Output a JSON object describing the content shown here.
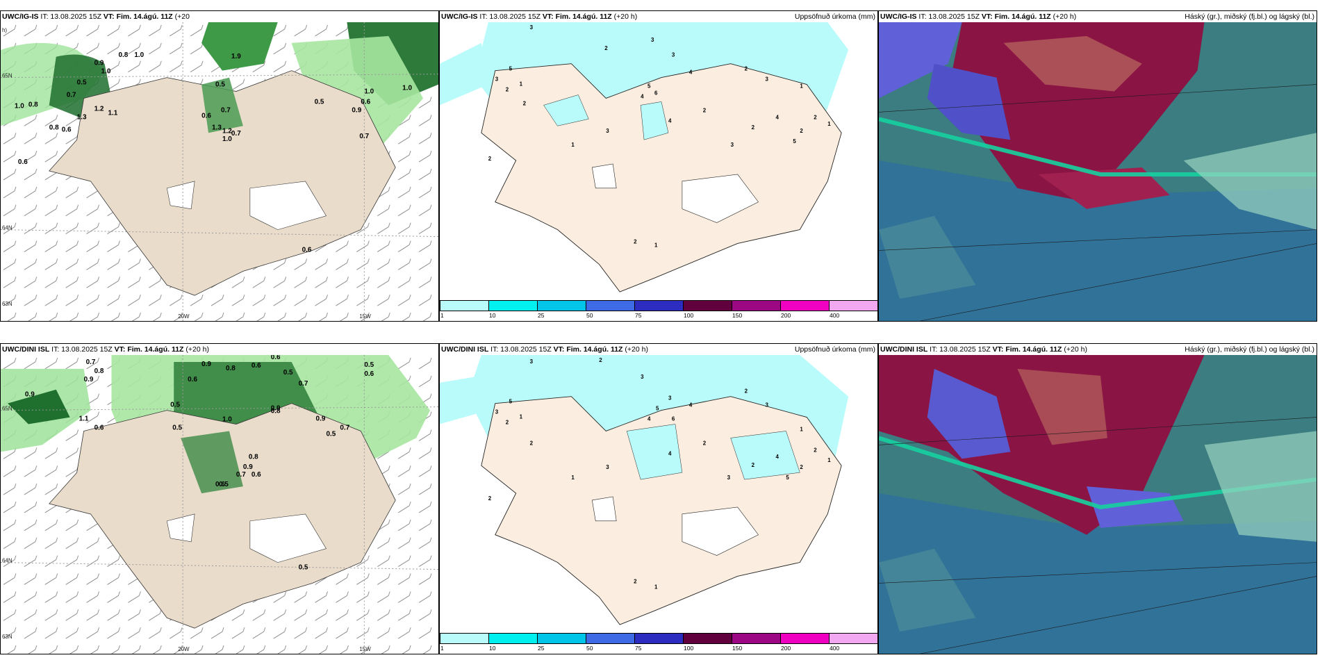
{
  "rows": [
    {
      "wind_panel": {
        "model": "UWC/IG-IS",
        "it": "IT: 13.08.2025 15Z",
        "vt": "VT: Fim. 14.ágú. 11Z",
        "lead": "(+20",
        "lead_tail": "h)",
        "values": [
          "0.8",
          "1.0",
          "0.9",
          "1.0",
          "0.5",
          "0.8",
          "0.7",
          "1.0",
          "0.8",
          "0.6",
          "1.3",
          "1.2",
          "1.1",
          "0.5",
          "0.7",
          "0.6",
          "1.3",
          "1.2",
          "1.0",
          "0.7",
          "1.9",
          "0.6",
          "0.5",
          "1.0",
          "0.6",
          "0.9",
          "1.0",
          "0.7",
          "0.6"
        ]
      },
      "precip_panel": {
        "model": "UWC/IG-IS",
        "it": "IT: 13.08.2025 15Z",
        "vt": "VT: Fim. 14.ágú. 11Z",
        "lead": "(+20 h)",
        "title": "Uppsöfnuð úrkoma (mm)"
      },
      "cloud_panel": {
        "model": "UWC/IG-IS",
        "it": "IT: 13.08.2025 15Z",
        "vt": "VT: Fim. 14.ágú. 11Z",
        "lead": "(+20 h)",
        "title": "Háský (gr.), miðský (fj.bl.) og lágský (bl.)"
      }
    },
    {
      "wind_panel": {
        "model": "UWC/DINI ISL",
        "it": "IT: 13.08.2025 15Z",
        "vt": "VT: Fim. 14.ágú. 11Z",
        "lead": "(+20 h)",
        "values": [
          "0.7",
          "0.8",
          "0.9",
          "0.9",
          "1.1",
          "0.6",
          "0.9",
          "0.8",
          "0.6",
          "0.6",
          "0.5",
          "0.7",
          "0.8",
          "0.6",
          "0.5",
          "0.5",
          "1.0",
          "0.9",
          "0.7",
          "0.6",
          "0.5",
          "0.9",
          "0.8",
          "0.7",
          "0.6",
          "0.5",
          "0.5",
          "0.6",
          "0.9",
          "0.5"
        ]
      },
      "precip_panel": {
        "model": "UWC/DINI ISL",
        "it": "IT: 13.08.2025 15Z",
        "vt": "VT: Fim. 14.ágú. 11Z",
        "lead": "(+20 h)",
        "title": "Uppsöfnuð úrkoma (mm)"
      },
      "cloud_panel": {
        "model": "UWC/DINI ISL",
        "it": "IT: 13.08.2025 15Z",
        "vt": "VT: Fim. 14.ágú. 11Z",
        "lead": "(+20 h)",
        "title": "Háský (gr.), miðský (fj.bl.) og lágský (bl.)"
      }
    }
  ],
  "axis": {
    "lon1": "20W",
    "lon2": "15W",
    "lat1": "65N",
    "lat2": "64N",
    "lat3": "63N"
  },
  "precip_values": [
    "3",
    "2",
    "3",
    "3",
    "5",
    "4",
    "6",
    "4",
    "2",
    "3",
    "1",
    "2",
    "1",
    "2",
    "5",
    "4",
    "2",
    "3",
    "2",
    "1",
    "2",
    "2",
    "1",
    "2",
    "3",
    "5",
    "4",
    "3",
    "2",
    "1"
  ],
  "colorbar": {
    "ticks": [
      "1",
      "10",
      "25",
      "50",
      "75",
      "100",
      "150",
      "200",
      "400"
    ],
    "colors": [
      "#b9fbfb",
      "#00f0f0",
      "#00c4e8",
      "#3e6ae6",
      "#2c2cc0",
      "#60003c",
      "#9c0884",
      "#f000c0",
      "#f2a8f0"
    ]
  }
}
